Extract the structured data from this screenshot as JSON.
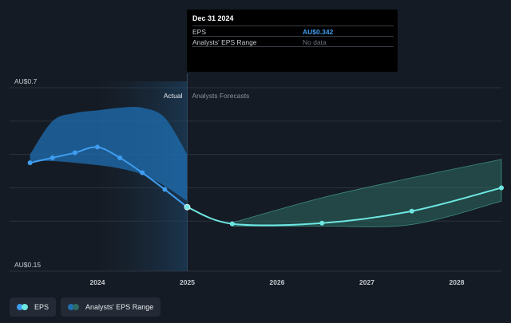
{
  "chart_data": {
    "type": "line",
    "x_labels": [
      "2024",
      "2025",
      "2026",
      "2027",
      "2028"
    ],
    "y_labels": {
      "top": "AU$0.7",
      "bottom": "AU$0.15"
    },
    "ylim": [
      0.15,
      0.7
    ],
    "xlim": [
      2023.1,
      2028.5
    ],
    "region_labels": {
      "actual": "Actual",
      "forecast": "Analysts Forecasts"
    },
    "actual_divider_x": 2025.0,
    "gridlines": true,
    "series": [
      {
        "name": "EPS",
        "color": "#3f9df0",
        "x": [
          2023.25,
          2023.5,
          2023.75,
          2024.0,
          2024.25,
          2024.5,
          2024.75,
          2025.0
        ],
        "values": [
          0.475,
          0.49,
          0.505,
          0.522,
          0.49,
          0.445,
          0.395,
          0.342
        ]
      },
      {
        "name": "EPS",
        "color": "#6ee7e2",
        "x": [
          2025.0,
          2025.5,
          2026.5,
          2027.5,
          2028.5
        ],
        "values": [
          0.342,
          0.292,
          0.294,
          0.33,
          0.4
        ]
      }
    ],
    "ranges": [
      {
        "name": "Analysts' EPS Range",
        "color": "#1f6fb3",
        "x": [
          2023.25,
          2023.5,
          2023.75,
          2024.0,
          2024.25,
          2024.5,
          2024.75,
          2025.0
        ],
        "high": [
          0.5,
          0.6,
          0.624,
          0.632,
          0.64,
          0.64,
          0.61,
          0.5
        ],
        "low": [
          0.48,
          0.48,
          0.475,
          0.468,
          0.458,
          0.44,
          0.405,
          0.36
        ]
      },
      {
        "name": "Analysts' EPS Range",
        "color": "#2e6b63",
        "x": [
          2025.5,
          2026.5,
          2027.5,
          2028.5
        ],
        "high": [
          0.295,
          0.37,
          0.43,
          0.485
        ],
        "low": [
          0.285,
          0.285,
          0.29,
          0.36
        ]
      }
    ]
  },
  "tooltip": {
    "date": "Dec 31 2024",
    "rows": [
      {
        "label": "EPS",
        "value": "AU$0.342"
      },
      {
        "label": "Analysts' EPS Range",
        "value": "No data"
      }
    ]
  },
  "legend": [
    {
      "label": "EPS",
      "colors": [
        "#3f9df0",
        "#6ee7e2"
      ]
    },
    {
      "label": "Analysts' EPS Range",
      "colors": [
        "#1f6fb3",
        "#2e6b63"
      ]
    }
  ]
}
